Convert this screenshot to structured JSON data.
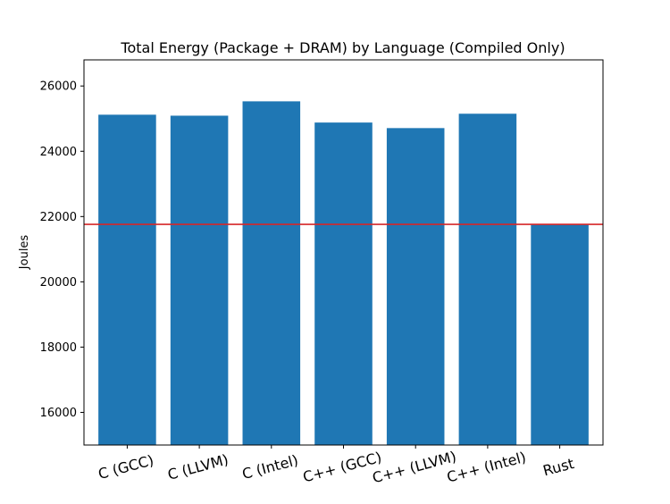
{
  "chart_data": {
    "type": "bar",
    "title": "Total Energy (Package + DRAM) by Language (Compiled Only)",
    "xlabel": "",
    "ylabel": "Joules",
    "categories": [
      "C (GCC)",
      "C (LLVM)",
      "C (Intel)",
      "C++ (GCC)",
      "C++ (LLVM)",
      "C++ (Intel)",
      "Rust"
    ],
    "values": [
      25120,
      25090,
      25530,
      24880,
      24710,
      25150,
      21760
    ],
    "ylim": [
      15000,
      26800
    ],
    "yticks": [
      16000,
      18000,
      20000,
      22000,
      24000,
      26000
    ],
    "reference_line": {
      "y": 21760,
      "color": "#d62728"
    },
    "bar_color": "#1f77b4",
    "grid": false,
    "legend": "none"
  }
}
